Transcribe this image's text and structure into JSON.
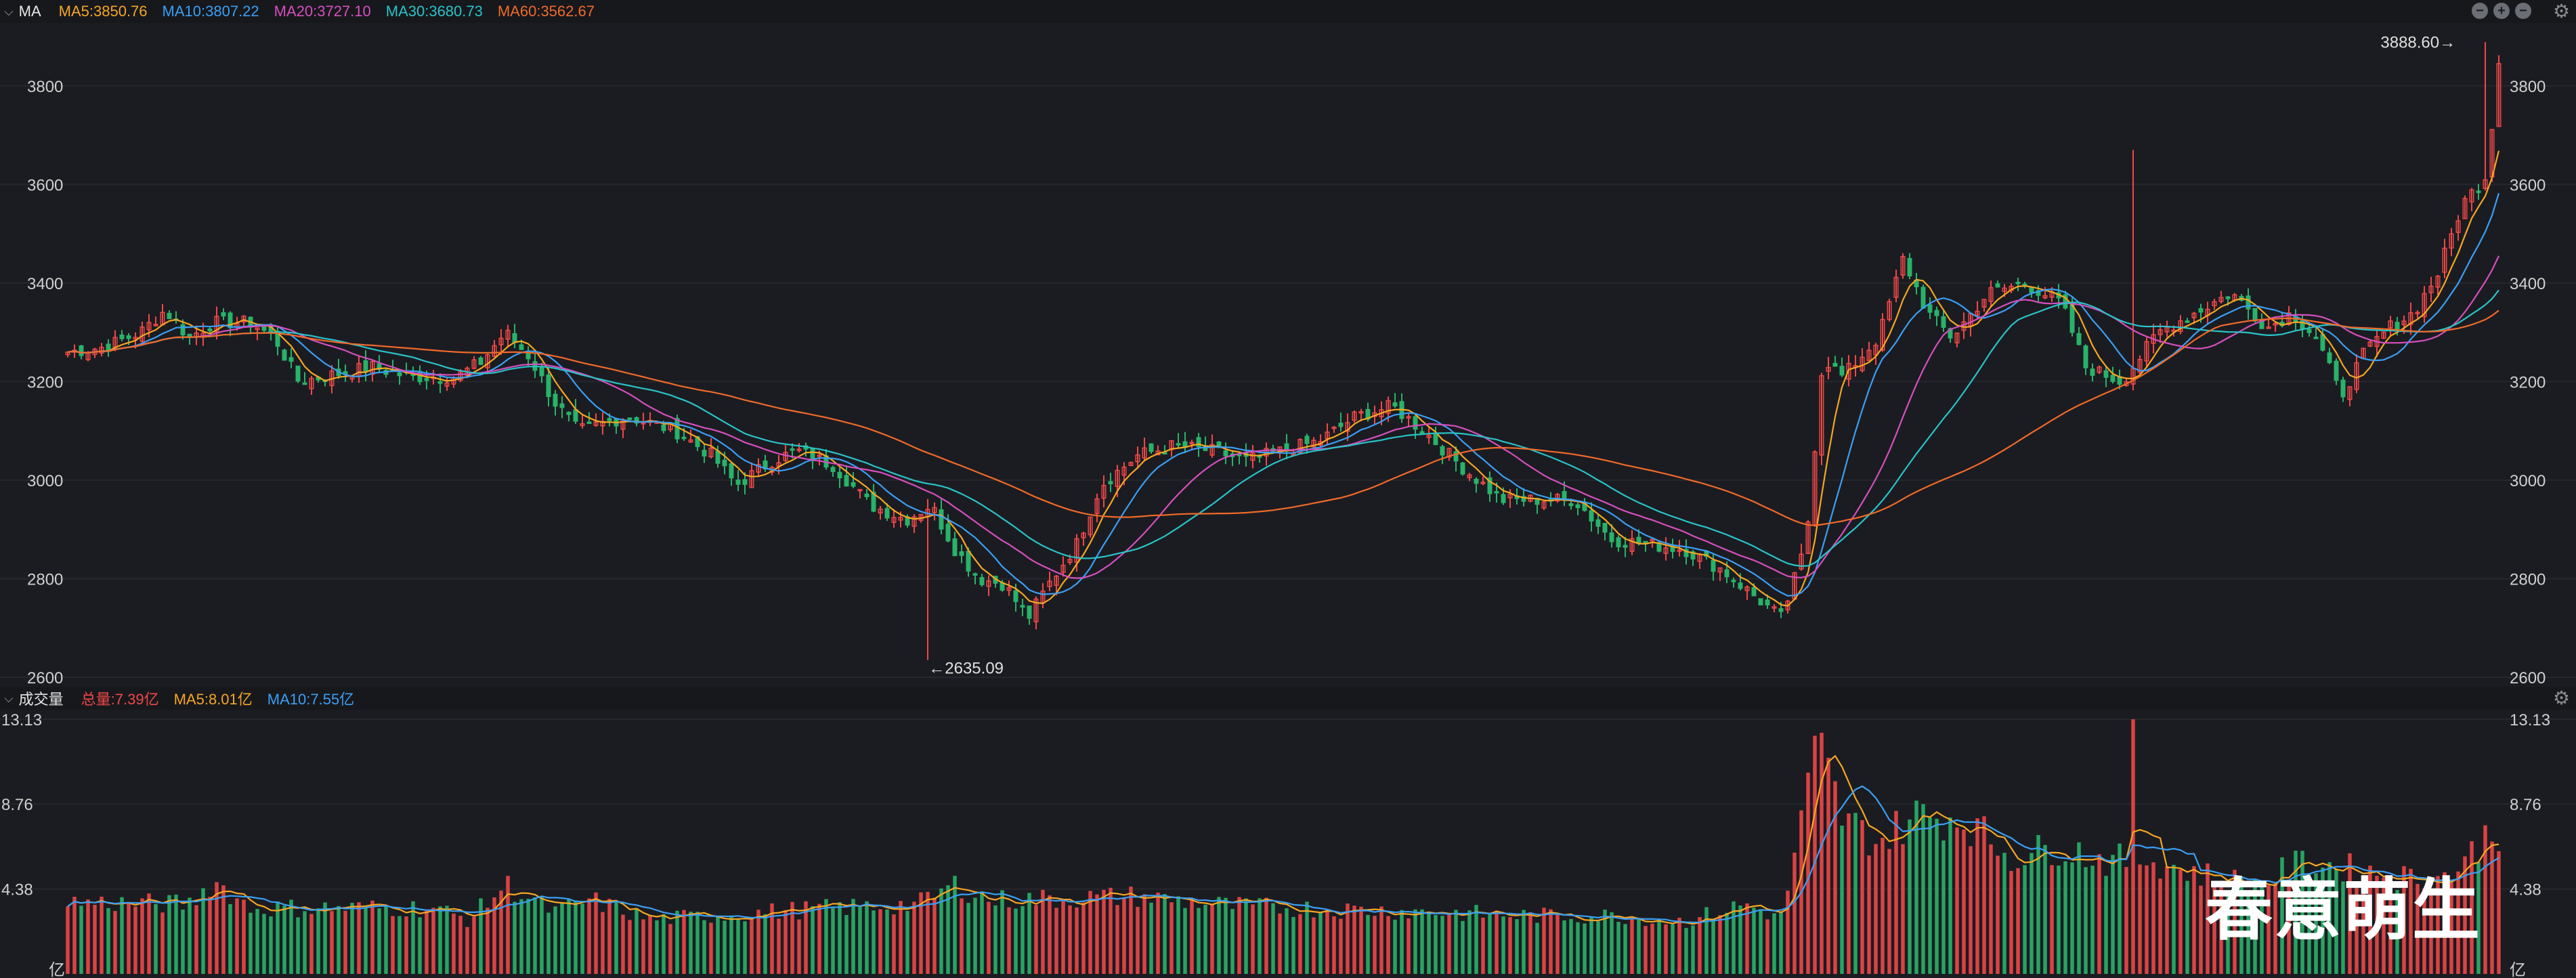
{
  "top_legend": {
    "title": "MA",
    "items": [
      {
        "text": "MA5:3850.76",
        "color": "#f5a623"
      },
      {
        "text": "MA10:3807.22",
        "color": "#3b9ff5"
      },
      {
        "text": "MA20:3727.10",
        "color": "#d64fbf"
      },
      {
        "text": "MA30:3680.73",
        "color": "#29c3c9"
      },
      {
        "text": "MA60:3562.67",
        "color": "#f06a2a"
      }
    ]
  },
  "bottom_legend": {
    "title": "成交量",
    "items": [
      {
        "text": "总量:7.39亿",
        "color": "#f04848"
      },
      {
        "text": "MA5:8.01亿",
        "color": "#f5a623"
      },
      {
        "text": "MA10:7.55亿",
        "color": "#3b9ff5"
      }
    ]
  },
  "watermark": "春意萌生",
  "colors": {
    "up": "#f04848",
    "down": "#29b36a",
    "grid": "#26272d",
    "axis_text": "#d0d0d0",
    "bg": "#1b1c21"
  },
  "chart_data": [
    {
      "type": "candlestick",
      "name": "price",
      "ylim": [
        2600,
        3900
      ],
      "yticks": [
        "3800",
        "3600",
        "3400",
        "3200",
        "3000",
        "2800",
        "2600"
      ],
      "ytick_values": [
        3800,
        3600,
        3400,
        3200,
        3000,
        2800,
        2600
      ],
      "annotations": [
        {
          "text": "←2635.09",
          "value": 2635.09,
          "bar": 0.353
        },
        {
          "text": "3888.60→",
          "value": 3888.6,
          "bar": 0.985
        }
      ],
      "close_path": [
        [
          0.0,
          3260
        ],
        [
          0.015,
          3270
        ],
        [
          0.03,
          3300
        ],
        [
          0.04,
          3345
        ],
        [
          0.05,
          3290
        ],
        [
          0.06,
          3320
        ],
        [
          0.075,
          3320
        ],
        [
          0.085,
          3290
        ],
        [
          0.095,
          3200
        ],
        [
          0.11,
          3215
        ],
        [
          0.125,
          3230
        ],
        [
          0.14,
          3210
        ],
        [
          0.16,
          3210
        ],
        [
          0.17,
          3240
        ],
        [
          0.18,
          3300
        ],
        [
          0.19,
          3250
        ],
        [
          0.2,
          3160
        ],
        [
          0.21,
          3100
        ],
        [
          0.23,
          3130
        ],
        [
          0.25,
          3100
        ],
        [
          0.265,
          3050
        ],
        [
          0.275,
          2990
        ],
        [
          0.29,
          3040
        ],
        [
          0.3,
          3060
        ],
        [
          0.315,
          3030
        ],
        [
          0.33,
          2950
        ],
        [
          0.345,
          2920
        ],
        [
          0.355,
          2950
        ],
        [
          0.365,
          2860
        ],
        [
          0.375,
          2800
        ],
        [
          0.385,
          2790
        ],
        [
          0.395,
          2720
        ],
        [
          0.405,
          2800
        ],
        [
          0.415,
          2870
        ],
        [
          0.425,
          2990
        ],
        [
          0.44,
          3050
        ],
        [
          0.455,
          3070
        ],
        [
          0.47,
          3060
        ],
        [
          0.485,
          3040
        ],
        [
          0.5,
          3060
        ],
        [
          0.515,
          3080
        ],
        [
          0.53,
          3130
        ],
        [
          0.545,
          3150
        ],
        [
          0.56,
          3090
        ],
        [
          0.575,
          3020
        ],
        [
          0.59,
          2960
        ],
        [
          0.605,
          2960
        ],
        [
          0.62,
          2960
        ],
        [
          0.635,
          2880
        ],
        [
          0.65,
          2870
        ],
        [
          0.665,
          2860
        ],
        [
          0.68,
          2820
        ],
        [
          0.695,
          2760
        ],
        [
          0.705,
          2720
        ],
        [
          0.715,
          2870
        ],
        [
          0.722,
          3250
        ],
        [
          0.73,
          3210
        ],
        [
          0.745,
          3290
        ],
        [
          0.755,
          3450
        ],
        [
          0.765,
          3340
        ],
        [
          0.775,
          3290
        ],
        [
          0.79,
          3380
        ],
        [
          0.805,
          3400
        ],
        [
          0.82,
          3360
        ],
        [
          0.83,
          3230
        ],
        [
          0.845,
          3200
        ],
        [
          0.86,
          3300
        ],
        [
          0.875,
          3340
        ],
        [
          0.89,
          3380
        ],
        [
          0.905,
          3310
        ],
        [
          0.915,
          3340
        ],
        [
          0.925,
          3290
        ],
        [
          0.935,
          3170
        ],
        [
          0.945,
          3260
        ],
        [
          0.955,
          3310
        ],
        [
          0.965,
          3340
        ],
        [
          0.975,
          3420
        ],
        [
          0.985,
          3560
        ],
        [
          0.995,
          3620
        ],
        [
          1.0,
          3850
        ]
      ],
      "series": [
        {
          "name": "MA5",
          "color": "#f5a623",
          "smooth": 4,
          "lag": 2
        },
        {
          "name": "MA10",
          "color": "#3b9ff5",
          "smooth": 8,
          "lag": 5
        },
        {
          "name": "MA20",
          "color": "#d64fbf",
          "smooth": 16,
          "lag": 10
        },
        {
          "name": "MA30",
          "color": "#29c3c9",
          "smooth": 24,
          "lag": 15
        },
        {
          "name": "MA60",
          "color": "#f06a2a",
          "smooth": 48,
          "lag": 30
        }
      ]
    },
    {
      "type": "bar",
      "name": "volume",
      "ylim": [
        0,
        13.13
      ],
      "yticks": [
        "13.13",
        "8.76",
        "4.38"
      ],
      "ytick_values": [
        13.13,
        8.76,
        4.38
      ],
      "unit_label": "亿",
      "volume_path": [
        [
          0.0,
          3.7
        ],
        [
          0.05,
          3.6
        ],
        [
          0.06,
          4.8
        ],
        [
          0.075,
          3.4
        ],
        [
          0.15,
          3.4
        ],
        [
          0.165,
          2.8
        ],
        [
          0.18,
          4.6
        ],
        [
          0.2,
          3.2
        ],
        [
          0.215,
          3.8
        ],
        [
          0.24,
          2.8
        ],
        [
          0.3,
          3.3
        ],
        [
          0.35,
          3.6
        ],
        [
          0.365,
          4.6
        ],
        [
          0.38,
          3.8
        ],
        [
          0.44,
          4.0
        ],
        [
          0.48,
          3.5
        ],
        [
          0.56,
          3.2
        ],
        [
          0.6,
          3.0
        ],
        [
          0.64,
          3.0
        ],
        [
          0.665,
          2.7
        ],
        [
          0.69,
          3.6
        ],
        [
          0.705,
          2.9
        ],
        [
          0.72,
          12.0
        ],
        [
          0.73,
          8.0
        ],
        [
          0.745,
          6.8
        ],
        [
          0.76,
          8.2
        ],
        [
          0.78,
          8.0
        ],
        [
          0.8,
          6.0
        ],
        [
          0.82,
          6.6
        ],
        [
          0.84,
          5.8
        ],
        [
          0.855,
          6.0
        ],
        [
          0.875,
          5.2
        ],
        [
          0.9,
          4.6
        ],
        [
          0.92,
          5.8
        ],
        [
          0.94,
          5.4
        ],
        [
          0.96,
          5.0
        ],
        [
          0.975,
          4.9
        ],
        [
          0.985,
          5.6
        ],
        [
          0.995,
          7.2
        ],
        [
          1.0,
          7.4
        ]
      ],
      "series": [
        {
          "name": "MA5",
          "color": "#f5a623",
          "smooth": 4
        },
        {
          "name": "MA10",
          "color": "#3b9ff5",
          "smooth": 8
        }
      ]
    }
  ]
}
